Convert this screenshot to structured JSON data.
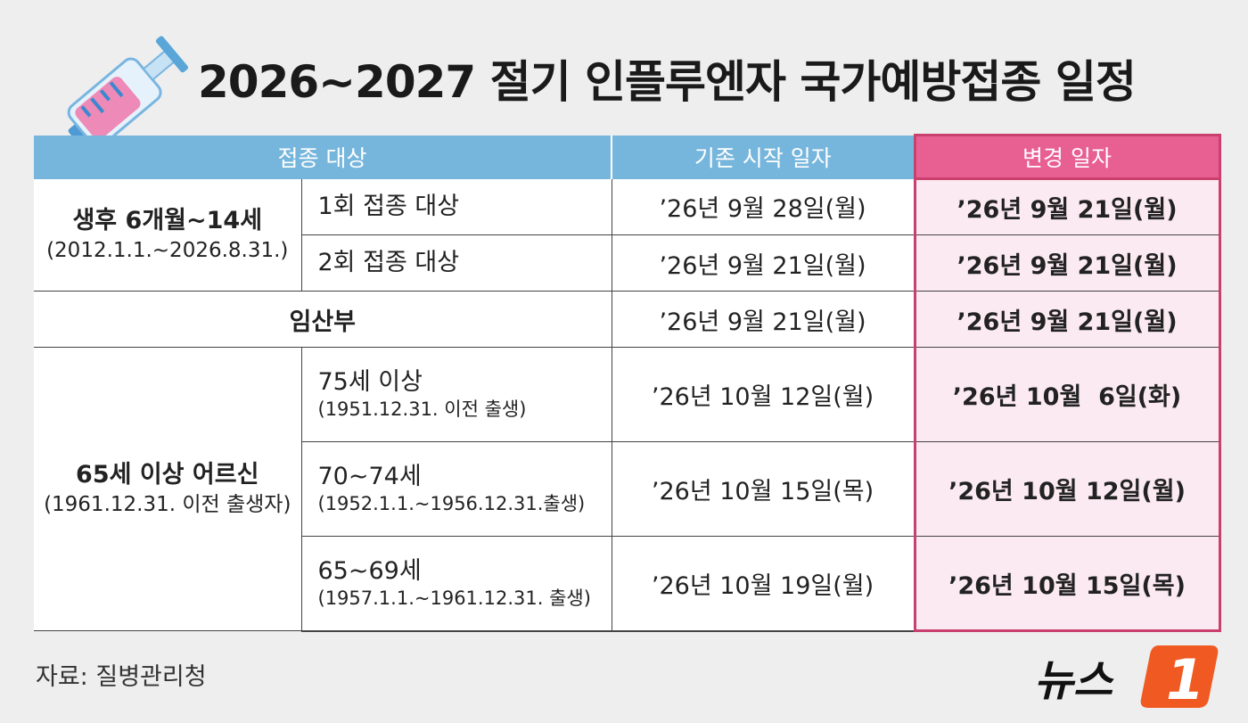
{
  "title": "2026~2027 절기 인플루엔자 국가예방접종 일정",
  "header": {
    "target": "접종 대상",
    "original": "기존 시작 일자",
    "changed": "변경 일자"
  },
  "rows": [
    {
      "group_main": "생후 6개월~14세",
      "group_sub": "(2012.1.1.~2026.8.31.)",
      "sub_main": "1회 접종 대상",
      "original": "’26년 9월 28일(월)",
      "changed": "’26년 9월 21일(월)"
    },
    {
      "sub_main": "2회 접종 대상",
      "original": "’26년 9월 21일(월)",
      "changed": "’26년 9월 21일(월)"
    },
    {
      "target": "임산부",
      "original": "’26년 9월 21일(월)",
      "changed": "’26년 9월 21일(월)"
    },
    {
      "group_main": "65세 이상 어르신",
      "group_sub": "(1961.12.31. 이전 출생자)",
      "sub_main": "75세 이상",
      "sub_sub": "(1951.12.31. 이전 출생)",
      "original": "’26년 10월 12일(월)",
      "changed": "’26년 10월  6일(화)"
    },
    {
      "sub_main": "70~74세",
      "sub_sub": "(1952.1.1.~1956.12.31.출생)",
      "original": "’26년 10월 15일(목)",
      "changed": "’26년 10월 12일(월)"
    },
    {
      "sub_main": "65~69세",
      "sub_sub": "(1957.1.1.~1961.12.31. 출생)",
      "original": "’26년 10월 19일(월)",
      "changed": "’26년 10월 15일(목)"
    }
  ],
  "source": "자료: 질병관리청",
  "logo": {
    "text": "뉴스",
    "mark": "1"
  },
  "colors": {
    "header_blue": "#76b6dc",
    "header_pink": "#e85f92",
    "highlight_bg": "#fbeaf1",
    "highlight_border": "#c9406f",
    "logo_orange": "#f05a22"
  },
  "icons": {
    "title_icon": "syringe-icon"
  }
}
